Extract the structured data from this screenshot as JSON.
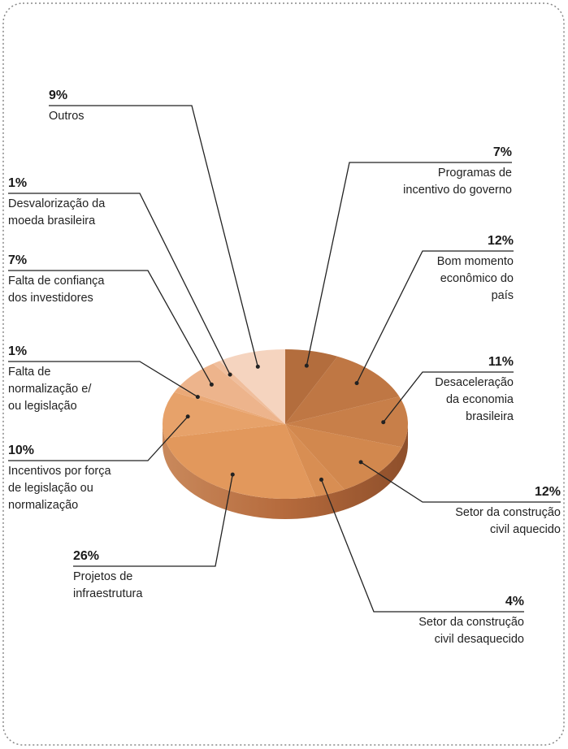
{
  "chart_data": {
    "type": "pie",
    "categories": [
      "Programas de\nincentivo do governo",
      "Bom momento\neconômico do\npaís",
      "Desaceleração\nda economia\nbrasileira",
      "Setor da construção\ncivil aquecido",
      "Setor da construção\ncivil desaquecido",
      "Projetos de\ninfraestrutura",
      "Incentivos por força\nde legislação ou\nnormalização",
      "Falta de\nnormalização e/\nou legislação",
      "Falta de confiança\ndos investidores",
      "Desvalorização da\nmoeda brasileira",
      "Outros"
    ],
    "values": [
      7,
      12,
      11,
      12,
      4,
      26,
      10,
      1,
      7,
      1,
      9
    ],
    "value_labels": [
      "7%",
      "12%",
      "11%",
      "12%",
      "4%",
      "26%",
      "10%",
      "1%",
      "7%",
      "1%",
      "9%"
    ],
    "colors": [
      "#b36d3d",
      "#bf7744",
      "#c87f49",
      "#d2884e",
      "#d88e53",
      "#e2985c",
      "#e7a26a",
      "#eaa977",
      "#edb48c",
      "#f0be9c",
      "#f5d4bf"
    ]
  }
}
